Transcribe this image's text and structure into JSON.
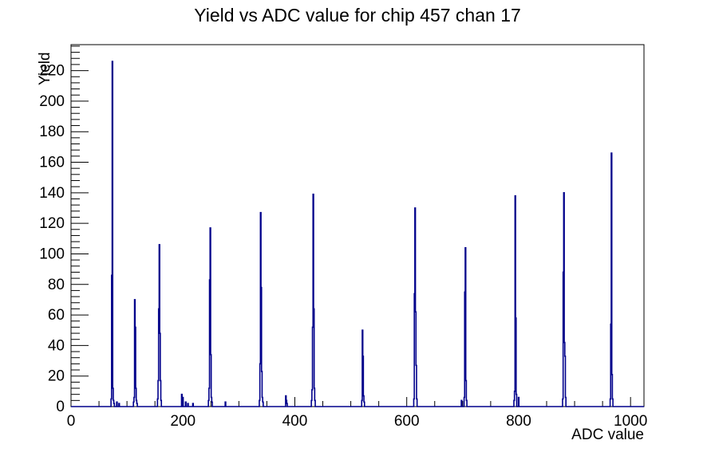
{
  "chart_data": {
    "type": "histogram",
    "title": "Yield vs ADC value for chip 457 chan 17",
    "xlabel": "ADC value",
    "ylabel": "Yield",
    "xlim": [
      0,
      1024
    ],
    "ylim": [
      0,
      237
    ],
    "grid": false,
    "legend": "none",
    "line_color": "#00008b",
    "axis_color": "#000000",
    "background_color": "#ffffff",
    "x_tick_labels": [
      0,
      200,
      400,
      600,
      800,
      1000
    ],
    "x_minor_step": 50,
    "y_tick_labels": [
      0,
      20,
      40,
      60,
      80,
      100,
      120,
      140,
      160,
      180,
      200,
      220
    ],
    "y_minor_step": 4,
    "bins": [
      [
        72,
        5
      ],
      [
        73,
        86
      ],
      [
        74,
        226
      ],
      [
        75,
        12
      ],
      [
        76,
        4
      ],
      [
        77,
        2
      ],
      [
        82,
        3
      ],
      [
        86,
        2
      ],
      [
        112,
        3
      ],
      [
        113,
        6
      ],
      [
        114,
        70
      ],
      [
        115,
        52
      ],
      [
        116,
        12
      ],
      [
        117,
        4
      ],
      [
        118,
        2
      ],
      [
        155,
        5
      ],
      [
        156,
        17
      ],
      [
        157,
        64
      ],
      [
        158,
        106
      ],
      [
        159,
        48
      ],
      [
        160,
        17
      ],
      [
        161,
        4
      ],
      [
        198,
        8
      ],
      [
        200,
        6
      ],
      [
        205,
        3
      ],
      [
        209,
        2
      ],
      [
        218,
        2
      ],
      [
        246,
        4
      ],
      [
        247,
        12
      ],
      [
        248,
        83
      ],
      [
        249,
        117
      ],
      [
        250,
        34
      ],
      [
        251,
        6
      ],
      [
        252,
        3
      ],
      [
        276,
        3
      ],
      [
        337,
        4
      ],
      [
        338,
        28
      ],
      [
        339,
        127
      ],
      [
        340,
        78
      ],
      [
        341,
        23
      ],
      [
        342,
        6
      ],
      [
        343,
        3
      ],
      [
        384,
        7
      ],
      [
        385,
        4
      ],
      [
        386,
        2
      ],
      [
        430,
        4
      ],
      [
        431,
        11
      ],
      [
        432,
        52
      ],
      [
        433,
        139
      ],
      [
        434,
        64
      ],
      [
        435,
        12
      ],
      [
        436,
        4
      ],
      [
        520,
        4
      ],
      [
        521,
        50
      ],
      [
        522,
        33
      ],
      [
        523,
        7
      ],
      [
        524,
        3
      ],
      [
        613,
        5
      ],
      [
        614,
        74
      ],
      [
        615,
        130
      ],
      [
        616,
        62
      ],
      [
        617,
        27
      ],
      [
        618,
        5
      ],
      [
        698,
        4
      ],
      [
        703,
        6
      ],
      [
        704,
        75
      ],
      [
        705,
        104
      ],
      [
        706,
        17
      ],
      [
        707,
        4
      ],
      [
        792,
        4
      ],
      [
        793,
        10
      ],
      [
        794,
        138
      ],
      [
        795,
        58
      ],
      [
        796,
        8
      ],
      [
        800,
        6
      ],
      [
        879,
        5
      ],
      [
        880,
        88
      ],
      [
        881,
        140
      ],
      [
        882,
        42
      ],
      [
        883,
        33
      ],
      [
        884,
        6
      ],
      [
        964,
        5
      ],
      [
        965,
        54
      ],
      [
        966,
        166
      ],
      [
        967,
        21
      ],
      [
        968,
        5
      ]
    ]
  }
}
